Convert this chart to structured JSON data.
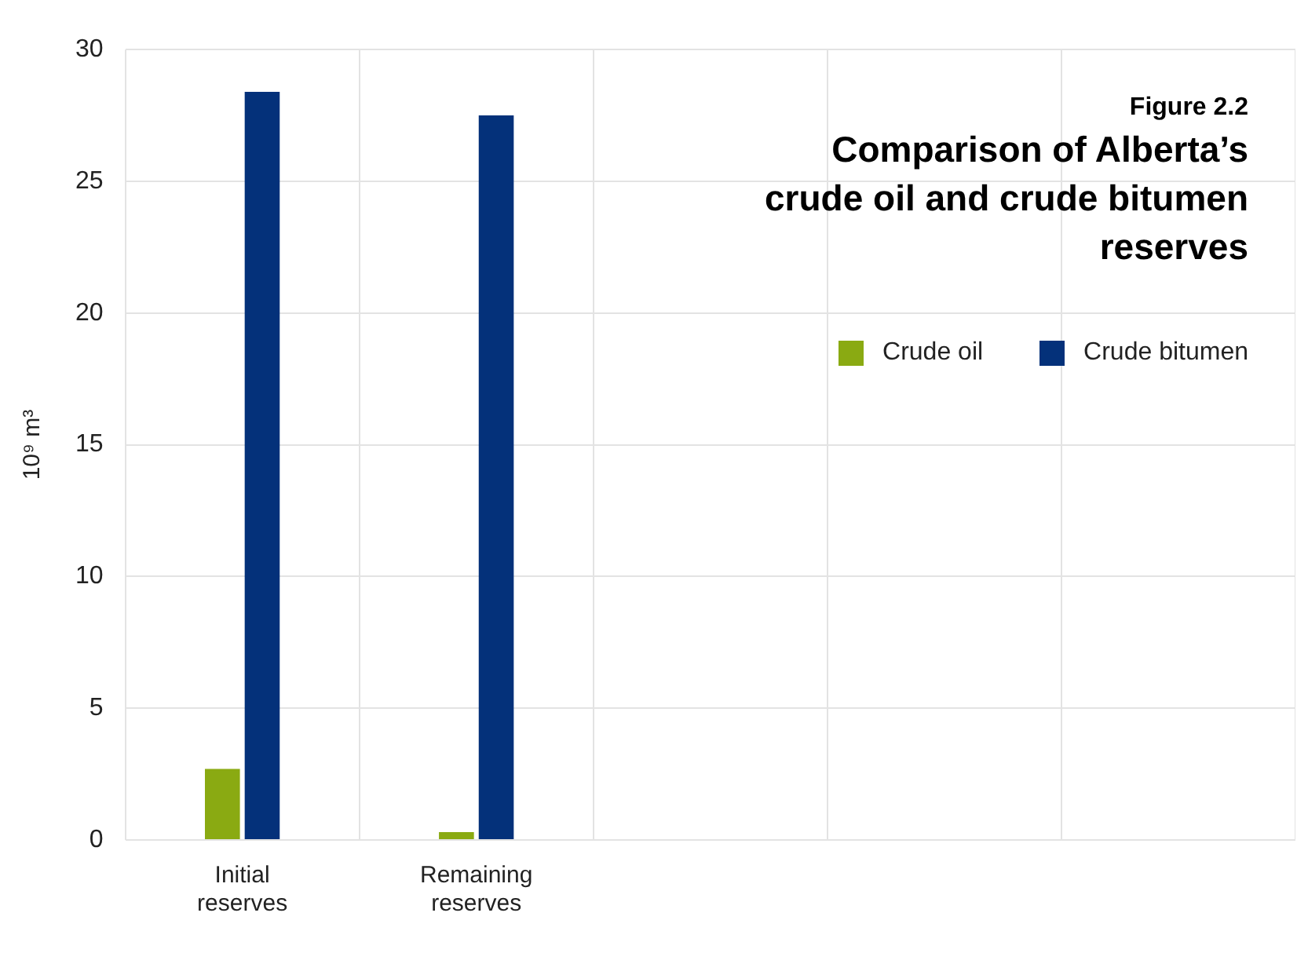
{
  "chart_data": {
    "type": "bar",
    "title": "Comparison of Alberta’s crude oil and crude bitumen reserves",
    "subtitle": "Figure 2.2",
    "ylabel": "10⁹ m³",
    "categories": [
      "Initial reserves",
      "Remaining reserves",
      null,
      null,
      null
    ],
    "series": [
      {
        "name": "Crude oil",
        "color": "#8aaa12",
        "values": [
          2.7,
          0.3,
          null,
          null,
          null
        ]
      },
      {
        "name": "Crude bitumen",
        "color": "#04317a",
        "values": [
          28.4,
          27.5,
          null,
          null,
          null
        ]
      }
    ],
    "ylim": [
      0,
      30
    ],
    "yticks": [
      0,
      5,
      10,
      15,
      20,
      25,
      30
    ],
    "grid": true,
    "legend": "top right"
  }
}
